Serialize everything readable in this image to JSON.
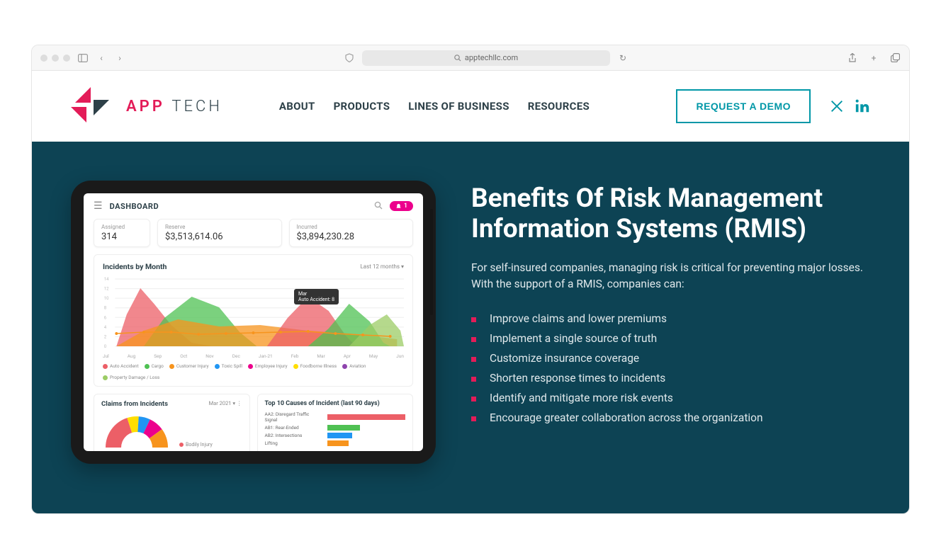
{
  "browser": {
    "url": "apptechllc.com"
  },
  "header": {
    "logo_text_bold": "APP",
    "logo_text_thin": "TECH",
    "logo_color_primary": "#e31c58",
    "nav": [
      "ABOUT",
      "PRODUCTS",
      "LINES OF BUSINESS",
      "RESOURCES"
    ],
    "cta": "REQUEST A DEMO",
    "cta_color": "#0097a7"
  },
  "hero": {
    "bg_color": "#0d4354",
    "title": "Benefits Of Risk Management Information Systems (RMIS)",
    "paragraph": "For self-insured companies, managing risk is critical for preventing major losses. With the support of a RMIS, companies can:",
    "bullets": [
      "Improve claims and lower premiums",
      "Implement a single source of truth",
      "Customize insurance coverage",
      "Shorten response times to incidents",
      "Identify and mitigate more risk events",
      "Encourage greater collaboration across the organization"
    ],
    "bullet_marker_color": "#e31c58"
  },
  "dashboard": {
    "title": "DASHBOARD",
    "notification_count": "1",
    "stats": [
      {
        "label": "Assigned",
        "value": "314"
      },
      {
        "label": "Reserve",
        "value": "$3,513,614.06"
      },
      {
        "label": "Incurred",
        "value": "$3,894,230.28"
      }
    ],
    "chart": {
      "title": "Incidents by Month",
      "filter": "Last 12 months",
      "y_max": 14,
      "y_ticks": [
        14,
        12,
        10,
        8,
        6,
        4,
        2,
        0
      ],
      "months": [
        "Jul",
        "Aug",
        "Sep",
        "Oct",
        "Nov",
        "Dec",
        "Jan-21",
        "Feb",
        "Mar",
        "Apr",
        "May",
        "Jun"
      ],
      "tooltip": {
        "month": "Mar",
        "text": "Auto Accident: 8"
      },
      "series": [
        {
          "name": "Auto Accident",
          "color": "#ec5f67"
        },
        {
          "name": "Cargo",
          "color": "#4fc153"
        },
        {
          "name": "Customer Injury",
          "color": "#f7941d"
        },
        {
          "name": "Toxic Spill",
          "color": "#2196f3"
        },
        {
          "name": "Employee Injury",
          "color": "#ec008c"
        },
        {
          "name": "Foodborne Illness",
          "color": "#ffde00"
        },
        {
          "name": "Aviation",
          "color": "#8e44ad"
        },
        {
          "name": "Property Damage / Loss",
          "color": "#9ccc65"
        }
      ]
    },
    "claims_panel": {
      "title": "Claims from Incidents",
      "filter": "Mar 2021",
      "legend_item": "Bodily Injury",
      "pie_slices": [
        {
          "color": "#ec5f67",
          "pct": 40
        },
        {
          "color": "#ffde00",
          "pct": 12
        },
        {
          "color": "#2196f3",
          "pct": 12
        },
        {
          "color": "#ec008c",
          "pct": 16
        },
        {
          "color": "#f7941d",
          "pct": 20
        }
      ]
    },
    "causes_panel": {
      "title": "Top 10 Causes of Incident (last 90 days)",
      "bars": [
        {
          "label": "AA2: Disregard Traffic Signal",
          "value": 100,
          "color": "#ec5f67"
        },
        {
          "label": "AB1: Rear-Ended",
          "value": 42,
          "color": "#4fc153"
        },
        {
          "label": "AB2: Intersections",
          "value": 32,
          "color": "#2196f3"
        },
        {
          "label": "Lifting",
          "value": 28,
          "color": "#f7941d"
        }
      ]
    }
  }
}
